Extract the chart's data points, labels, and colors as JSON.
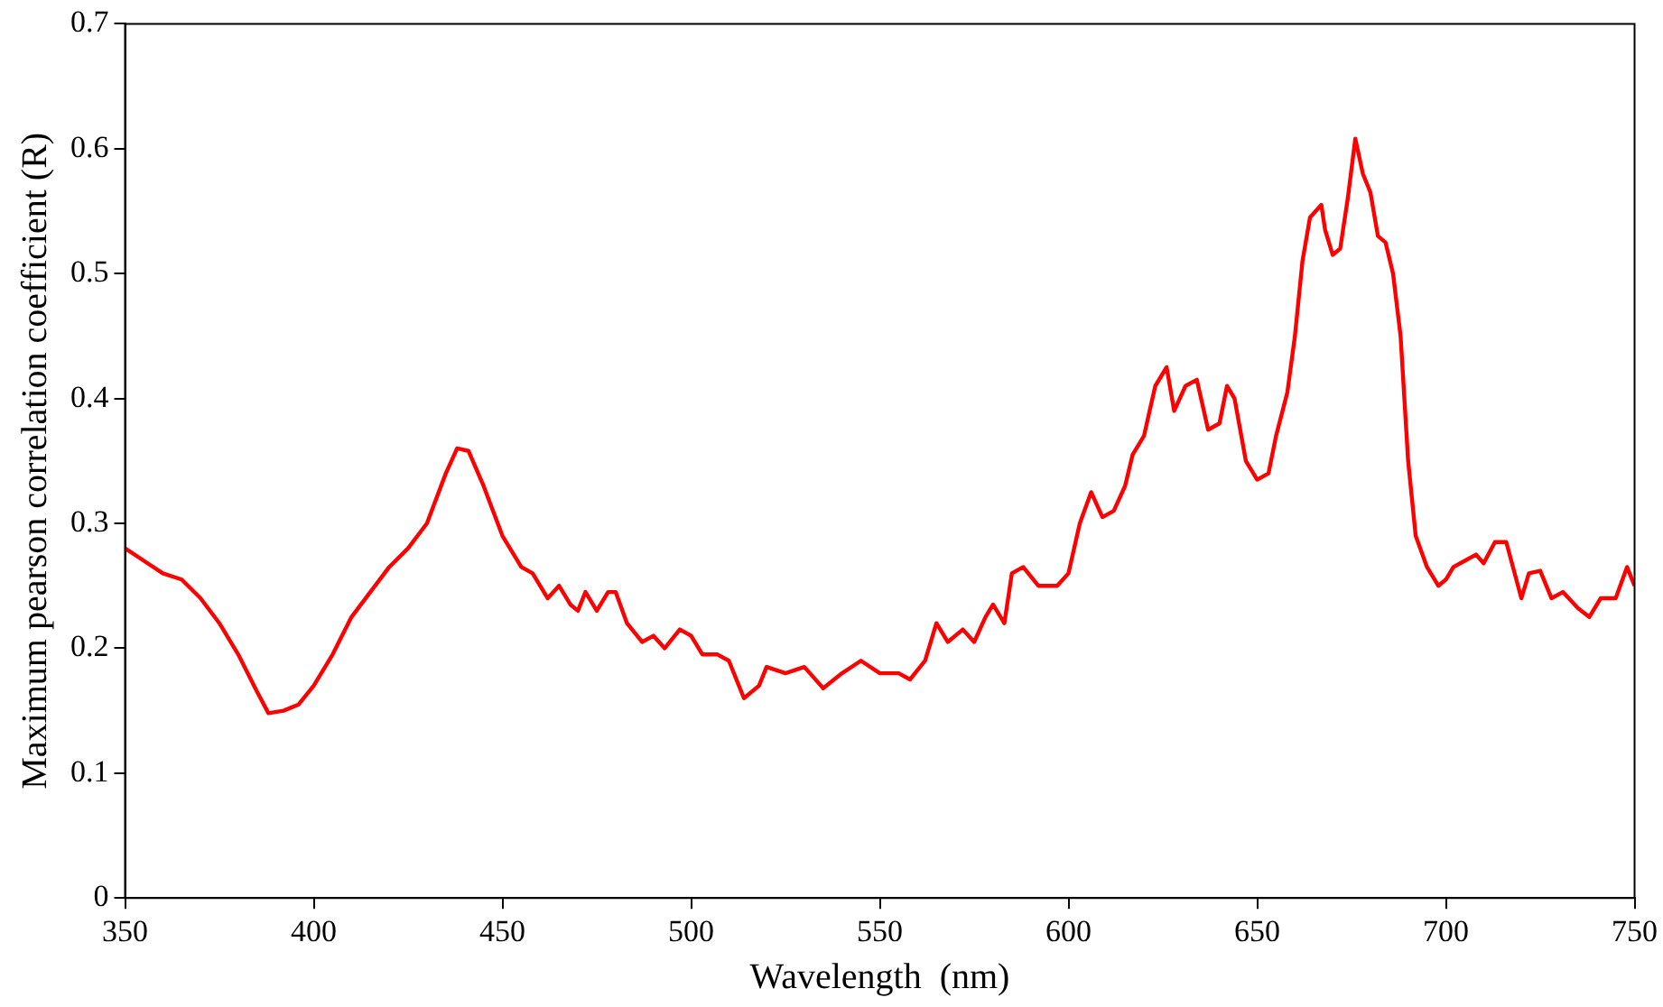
{
  "chart_data": {
    "type": "line",
    "xlabel": "Wavelength  (nm)",
    "ylabel": "Maximum pearson correlation coefficient (R)",
    "xlim": [
      350,
      750
    ],
    "xticks": [
      350,
      400,
      450,
      500,
      550,
      600,
      650,
      700,
      750
    ],
    "ylim": [
      0,
      0.7
    ],
    "yticks": [
      0,
      0.1,
      0.2,
      0.3,
      0.4,
      0.5,
      0.6,
      0.7
    ],
    "grid": false,
    "legend": false,
    "marker": "none",
    "line_style": "solid",
    "series": [
      {
        "color": "#ff0000",
        "x": [
          350,
          355,
          360,
          365,
          370,
          375,
          380,
          385,
          388,
          392,
          396,
          400,
          405,
          410,
          415,
          420,
          425,
          430,
          435,
          438,
          441,
          445,
          450,
          455,
          458,
          462,
          465,
          468,
          470,
          472,
          475,
          478,
          480,
          483,
          487,
          490,
          493,
          497,
          500,
          503,
          507,
          510,
          514,
          518,
          520,
          525,
          530,
          535,
          540,
          545,
          550,
          555,
          558,
          562,
          565,
          568,
          572,
          575,
          578,
          580,
          583,
          585,
          588,
          592,
          597,
          600,
          603,
          606,
          609,
          612,
          615,
          617,
          620,
          623,
          626,
          628,
          631,
          634,
          637,
          640,
          642,
          644,
          647,
          650,
          653,
          655,
          658,
          660,
          662,
          664,
          667,
          668,
          670,
          672,
          674,
          676,
          678,
          680,
          682,
          684,
          686,
          688,
          690,
          692,
          695,
          698,
          700,
          702,
          705,
          708,
          710,
          713,
          716,
          720,
          722,
          725,
          728,
          731,
          735,
          738,
          741,
          745,
          748,
          750
        ],
        "values": [
          0.28,
          0.27,
          0.26,
          0.255,
          0.24,
          0.22,
          0.195,
          0.165,
          0.148,
          0.15,
          0.155,
          0.17,
          0.195,
          0.225,
          0.245,
          0.265,
          0.28,
          0.3,
          0.34,
          0.36,
          0.358,
          0.33,
          0.29,
          0.265,
          0.26,
          0.24,
          0.25,
          0.235,
          0.23,
          0.245,
          0.23,
          0.245,
          0.245,
          0.22,
          0.205,
          0.21,
          0.2,
          0.215,
          0.21,
          0.195,
          0.195,
          0.19,
          0.16,
          0.17,
          0.185,
          0.18,
          0.185,
          0.168,
          0.18,
          0.19,
          0.18,
          0.18,
          0.175,
          0.19,
          0.22,
          0.205,
          0.215,
          0.205,
          0.225,
          0.235,
          0.22,
          0.26,
          0.265,
          0.25,
          0.25,
          0.26,
          0.3,
          0.325,
          0.305,
          0.31,
          0.33,
          0.355,
          0.37,
          0.41,
          0.425,
          0.39,
          0.41,
          0.415,
          0.375,
          0.38,
          0.41,
          0.4,
          0.35,
          0.335,
          0.34,
          0.37,
          0.405,
          0.45,
          0.51,
          0.545,
          0.555,
          0.535,
          0.515,
          0.52,
          0.56,
          0.608,
          0.58,
          0.565,
          0.53,
          0.525,
          0.5,
          0.45,
          0.35,
          0.29,
          0.265,
          0.25,
          0.255,
          0.265,
          0.27,
          0.275,
          0.268,
          0.285,
          0.285,
          0.24,
          0.26,
          0.262,
          0.24,
          0.245,
          0.232,
          0.225,
          0.24,
          0.24,
          0.265,
          0.25
        ]
      }
    ]
  }
}
